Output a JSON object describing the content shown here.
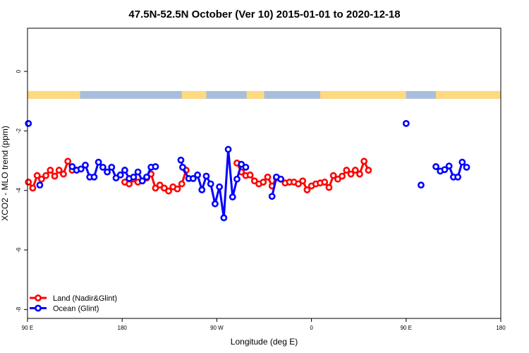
{
  "chart_data": {
    "type": "line",
    "title": "47.5N-52.5N October (Ver 10)   2015-01-01 to 2020-12-18",
    "xlabel": "Longitude (deg E)",
    "ylabel": "XCO2 - MLO trend (ppm)",
    "xlim": [
      -90,
      180
    ],
    "ylim": [
      -8.3,
      1.45
    ],
    "x_ticks": [
      {
        "value": -90,
        "label": "90 E"
      },
      {
        "value": -36,
        "label": "180"
      },
      {
        "value": 18,
        "label": "90 W"
      },
      {
        "value": 72,
        "label": "0"
      },
      {
        "value": 126,
        "label": "90 E"
      },
      {
        "value": 180,
        "label": "180"
      }
    ],
    "y_ticks": [
      {
        "value": 0,
        "label": "0"
      },
      {
        "value": -2,
        "label": "-2"
      },
      {
        "value": -4,
        "label": "-4"
      },
      {
        "value": -6,
        "label": "-6"
      },
      {
        "value": -8,
        "label": "-8"
      }
    ],
    "grid": false,
    "legend_position": "bottom-left",
    "land_mask_band": {
      "y_range": [
        -0.92,
        -0.66
      ],
      "land_color": "#FFD980",
      "ocean_color": "#A8BEDB",
      "land_segments": [
        [
          -90,
          -60
        ],
        [
          -2,
          12
        ],
        [
          35,
          45
        ],
        [
          77,
          126
        ],
        [
          143,
          180
        ]
      ]
    },
    "series": [
      {
        "name": "Land (Nadir&Glint)",
        "color": "#FF0000",
        "points": [
          [
            -89.5,
            -3.72
          ],
          [
            -87,
            -3.92
          ],
          [
            -84.5,
            -3.5
          ],
          [
            -82,
            -3.62
          ],
          [
            -79.5,
            -3.5
          ],
          [
            -77,
            -3.32
          ],
          [
            -74.5,
            -3.52
          ],
          [
            -72,
            -3.32
          ],
          [
            -69.5,
            -3.45
          ],
          [
            -67,
            -3.02
          ],
          [
            -64.5,
            -3.32
          ],
          [
            -34.5,
            -3.72
          ],
          [
            -32,
            -3.78
          ],
          [
            -29.5,
            -3.62
          ],
          [
            -27,
            -3.72
          ],
          [
            -24.5,
            -3.68
          ],
          [
            -22,
            -3.58
          ],
          [
            -19.5,
            -3.45
          ],
          [
            -17,
            -3.92
          ],
          [
            -14.5,
            -3.82
          ],
          [
            -12,
            -3.92
          ],
          [
            -9.5,
            -4.02
          ],
          [
            -7,
            -3.88
          ],
          [
            -4.5,
            -3.95
          ],
          [
            -2,
            -3.78
          ],
          [
            0.5,
            -3.32
          ],
          [
            29.5,
            -3.08
          ],
          [
            32,
            -3.38
          ],
          [
            34.5,
            -3.5
          ],
          [
            37,
            -3.48
          ],
          [
            39.5,
            -3.68
          ],
          [
            42,
            -3.78
          ],
          [
            44.5,
            -3.72
          ],
          [
            47,
            -3.55
          ],
          [
            49.5,
            -3.85
          ],
          [
            52,
            -3.58
          ],
          [
            54.5,
            -3.62
          ],
          [
            57,
            -3.75
          ],
          [
            59.5,
            -3.72
          ],
          [
            62,
            -3.72
          ],
          [
            64.5,
            -3.78
          ],
          [
            67,
            -3.68
          ],
          [
            69.5,
            -3.98
          ],
          [
            72,
            -3.85
          ],
          [
            74.5,
            -3.78
          ],
          [
            77,
            -3.75
          ],
          [
            79.5,
            -3.72
          ],
          [
            82,
            -3.9
          ],
          [
            84.5,
            -3.5
          ],
          [
            87,
            -3.62
          ],
          [
            89.5,
            -3.52
          ],
          [
            92,
            -3.32
          ],
          [
            94.5,
            -3.45
          ],
          [
            97,
            -3.32
          ],
          [
            99.5,
            -3.45
          ],
          [
            102,
            -3.02
          ],
          [
            104.5,
            -3.32
          ]
        ]
      },
      {
        "name": "Ocean (Glint)",
        "color": "#0000FF",
        "points": [
          [
            -89.5,
            -1.75
          ],
          [
            -83,
            -3.82
          ],
          [
            -64.5,
            -3.2
          ],
          [
            -62,
            -3.32
          ],
          [
            -59.5,
            -3.28
          ],
          [
            -57,
            -3.15
          ],
          [
            -54.5,
            -3.55
          ],
          [
            -52,
            -3.55
          ],
          [
            -49.5,
            -3.05
          ],
          [
            -47,
            -3.22
          ],
          [
            -44.5,
            -3.38
          ],
          [
            -42,
            -3.22
          ],
          [
            -39.5,
            -3.58
          ],
          [
            -37,
            -3.48
          ],
          [
            -34.5,
            -3.32
          ],
          [
            -32,
            -3.6
          ],
          [
            -29.5,
            -3.55
          ],
          [
            -27,
            -3.38
          ],
          [
            -24.5,
            -3.68
          ],
          [
            -22,
            -3.55
          ],
          [
            -19.5,
            -3.22
          ],
          [
            -17,
            -3.2
          ],
          [
            -2.5,
            -2.98
          ],
          [
            -1.5,
            -3.22
          ],
          [
            2,
            -3.6
          ],
          [
            4.5,
            -3.6
          ],
          [
            7,
            -3.48
          ],
          [
            9.5,
            -3.98
          ],
          [
            12,
            -3.52
          ],
          [
            14.5,
            -3.78
          ],
          [
            17,
            -4.45
          ],
          [
            19.5,
            -3.88
          ],
          [
            22,
            -4.92
          ],
          [
            24.5,
            -2.62
          ],
          [
            27,
            -4.22
          ],
          [
            29.5,
            -3.62
          ],
          [
            32,
            -3.12
          ],
          [
            34.5,
            -3.22
          ],
          [
            49.5,
            -4.2
          ],
          [
            52,
            -3.55
          ],
          [
            54.5,
            -3.62
          ],
          [
            126,
            -1.75
          ],
          [
            134.5,
            -3.82
          ],
          [
            143,
            -3.2
          ],
          [
            145.5,
            -3.35
          ],
          [
            148,
            -3.3
          ],
          [
            150.5,
            -3.18
          ],
          [
            153,
            -3.55
          ],
          [
            155.5,
            -3.55
          ],
          [
            158,
            -3.05
          ],
          [
            160.5,
            -3.22
          ]
        ]
      }
    ]
  }
}
